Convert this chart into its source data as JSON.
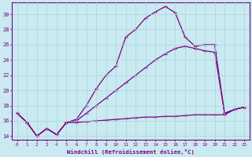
{
  "xlabel": "Windchill (Refroidissement éolien,°C)",
  "bg_color": "#c8eaf0",
  "line_color": "#800080",
  "grid_color": "#aad4dc",
  "xlim": [
    -0.5,
    23.5
  ],
  "ylim": [
    13.5,
    31.5
  ],
  "xticks": [
    0,
    1,
    2,
    3,
    4,
    5,
    6,
    7,
    8,
    9,
    10,
    11,
    12,
    13,
    14,
    15,
    16,
    17,
    18,
    19,
    20,
    21,
    22,
    23
  ],
  "yticks": [
    14,
    16,
    18,
    20,
    22,
    24,
    26,
    28,
    30
  ],
  "shared_x": [
    0,
    1,
    2,
    3,
    4,
    5
  ],
  "shared_y": [
    17.0,
    15.8,
    14.0,
    15.0,
    14.2,
    15.8
  ],
  "line1_x": [
    5,
    6,
    7,
    8,
    9,
    10,
    11,
    12,
    13,
    14,
    15,
    16,
    17,
    18,
    19,
    20,
    21,
    22,
    23
  ],
  "line1_y": [
    15.8,
    16.2,
    18.0,
    20.2,
    22.0,
    23.2,
    27.0,
    28.0,
    29.5,
    30.3,
    31.0,
    30.2,
    27.0,
    25.8,
    26.0,
    26.0,
    17.0,
    17.5,
    17.8
  ],
  "line2_x": [
    5,
    6,
    7,
    8,
    9,
    10,
    11,
    12,
    13,
    14,
    15,
    16,
    17,
    18,
    19,
    20,
    21,
    22,
    23
  ],
  "line2_y": [
    15.8,
    16.0,
    17.0,
    18.0,
    19.0,
    20.0,
    21.0,
    22.0,
    23.0,
    24.0,
    24.8,
    25.5,
    25.8,
    25.5,
    25.2,
    25.0,
    17.0,
    17.5,
    17.8
  ],
  "line3_x": [
    5,
    6,
    7,
    8,
    9,
    10,
    11,
    12,
    13,
    14,
    15,
    16,
    17,
    18,
    19,
    20,
    21,
    22,
    23
  ],
  "line3_y": [
    15.8,
    15.8,
    15.9,
    16.0,
    16.1,
    16.2,
    16.3,
    16.4,
    16.5,
    16.5,
    16.6,
    16.6,
    16.7,
    16.8,
    16.8,
    16.8,
    16.8,
    17.5,
    17.8
  ]
}
